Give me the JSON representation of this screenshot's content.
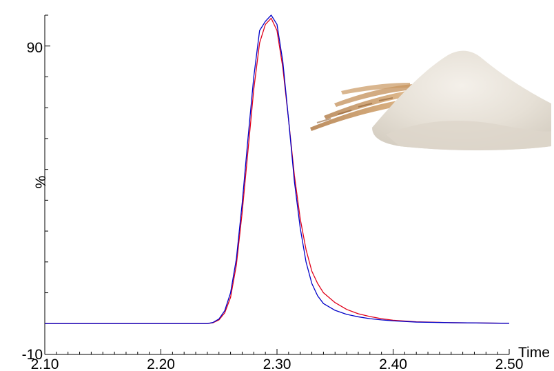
{
  "chart_data": {
    "type": "line",
    "title": "",
    "xlabel": "Time",
    "ylabel": "%",
    "xlim": [
      2.1,
      2.5
    ],
    "ylim": [
      -10,
      100
    ],
    "grid": false,
    "legend": "none",
    "x_ticks": [
      "2.10",
      "2.20",
      "2.30",
      "2.40",
      "2.50"
    ],
    "y_ticks": [
      "-10",
      "90"
    ],
    "x_tick_values": [
      2.1,
      2.2,
      2.3,
      2.4,
      2.5
    ],
    "y_tick_values": [
      -10,
      90
    ],
    "decorative_image": "wheat-and-flour-pile",
    "series": [
      {
        "color": "#e0001a",
        "x": [
          2.1,
          2.15,
          2.2,
          2.24,
          2.245,
          2.25,
          2.255,
          2.26,
          2.265,
          2.27,
          2.275,
          2.28,
          2.285,
          2.29,
          2.295,
          2.3,
          2.305,
          2.31,
          2.315,
          2.32,
          2.325,
          2.33,
          2.335,
          2.34,
          2.35,
          2.36,
          2.37,
          2.38,
          2.39,
          2.4,
          2.42,
          2.45,
          2.5
        ],
        "y": [
          0,
          0,
          0,
          0,
          0.3,
          1.2,
          3.5,
          8.5,
          19,
          36,
          56,
          76,
          91,
          97,
          99,
          95,
          83,
          66,
          48,
          34,
          24,
          17,
          13,
          10,
          6.8,
          4.6,
          3.2,
          2.3,
          1.6,
          1.1,
          0.6,
          0.3,
          0.1
        ]
      },
      {
        "color": "#0000c8",
        "x": [
          2.1,
          2.15,
          2.2,
          2.24,
          2.245,
          2.25,
          2.255,
          2.26,
          2.265,
          2.27,
          2.275,
          2.28,
          2.285,
          2.29,
          2.295,
          2.3,
          2.305,
          2.31,
          2.315,
          2.32,
          2.325,
          2.33,
          2.335,
          2.34,
          2.35,
          2.36,
          2.37,
          2.38,
          2.39,
          2.4,
          2.42,
          2.45,
          2.5
        ],
        "y": [
          0,
          0,
          0,
          0,
          0.4,
          1.5,
          4.2,
          10,
          21,
          39,
          60,
          80,
          95,
          98,
          100,
          97,
          85,
          66,
          46,
          31,
          20,
          13,
          9,
          6.5,
          4.3,
          3,
          2.2,
          1.6,
          1.2,
          0.9,
          0.5,
          0.3,
          0.1
        ]
      }
    ]
  }
}
